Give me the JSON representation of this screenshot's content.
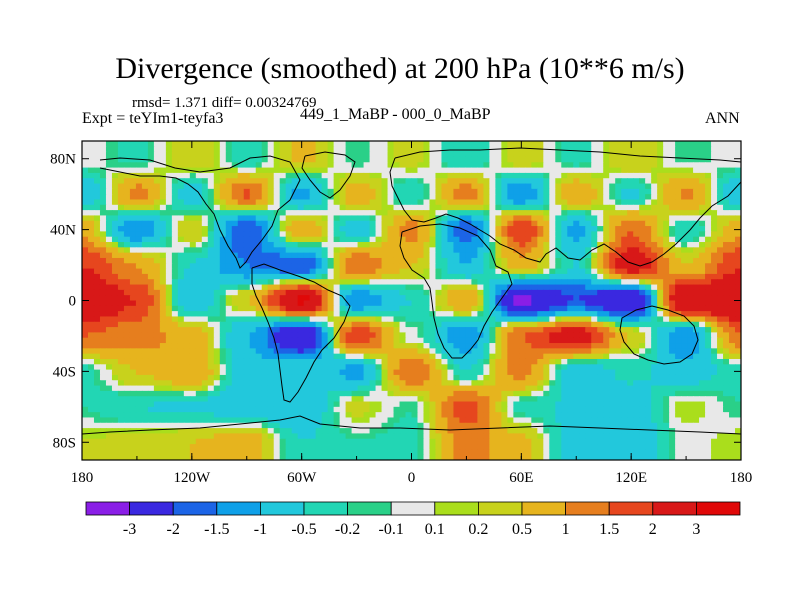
{
  "chart_data": {
    "type": "heatmap",
    "title": "Divergence (smoothed) at 200 hPa (10**6 m/s)",
    "stats_text": "rmsd= 1.371 diff= 0.00324769",
    "experiment_text": "Expt = teYIm1-teyfa3",
    "comparison_text": "449_1_MaBP - 000_0_MaBP",
    "season": "ANN",
    "x_ticks": [
      "180",
      "120W",
      "60W",
      "0",
      "60E",
      "120E",
      "180"
    ],
    "y_ticks": [
      "80N",
      "40N",
      "0",
      "40S",
      "80S"
    ],
    "xlim": [
      -180,
      180
    ],
    "ylim": [
      -90,
      90
    ],
    "colorbar": {
      "labels": [
        "-3",
        "-2",
        "-1.5",
        "-1",
        "-0.5",
        "-0.2",
        "-0.1",
        "0.1",
        "0.2",
        "0.5",
        "1",
        "1.5",
        "2",
        "3"
      ],
      "colors": [
        "#8a1ee6",
        "#3a28e0",
        "#1c64e6",
        "#0fa0e8",
        "#22c8dc",
        "#22d6b4",
        "#2ad088",
        "#e8e8e8",
        "#aade1c",
        "#c8d21c",
        "#e6b41e",
        "#e67e1e",
        "#e6461e",
        "#d81818",
        "#e00808"
      ]
    },
    "field": {
      "lon": [
        -180,
        -150,
        -120,
        -90,
        -60,
        -30,
        0,
        30,
        60,
        90,
        120,
        150,
        180
      ],
      "lat": [
        80,
        60,
        40,
        20,
        0,
        -20,
        -40,
        -60,
        -80
      ],
      "values": [
        [
          0.05,
          -0.3,
          0.5,
          -0.4,
          0.6,
          -0.2,
          0.3,
          -0.5,
          0.4,
          -0.3,
          0.5,
          -0.2,
          0.05
        ],
        [
          -1.0,
          1.2,
          -0.8,
          1.6,
          -1.2,
          0.8,
          -0.5,
          1.3,
          -1.5,
          0.9,
          -0.6,
          1.1,
          -1.0
        ],
        [
          0.8,
          -1.5,
          0.5,
          -2.0,
          1.0,
          -0.8,
          1.2,
          -1.8,
          2.0,
          -1.2,
          1.5,
          -0.5,
          0.8
        ],
        [
          2.0,
          1.0,
          -0.5,
          -1.5,
          -2.0,
          1.5,
          0.5,
          -1.0,
          0.8,
          -0.5,
          2.5,
          0.5,
          2.0
        ],
        [
          3.0,
          2.0,
          -1.0,
          0.5,
          3.2,
          -1.5,
          -0.5,
          1.0,
          -3.2,
          -2.0,
          -3.0,
          3.0,
          3.0
        ],
        [
          1.5,
          1.2,
          0.8,
          -1.0,
          -3.0,
          2.0,
          0.0,
          -1.5,
          1.5,
          2.5,
          0.5,
          -1.5,
          1.5
        ],
        [
          -0.3,
          0.5,
          1.0,
          -0.8,
          -0.5,
          -1.2,
          1.5,
          -0.5,
          1.2,
          -0.8,
          -0.4,
          -0.8,
          -0.3
        ],
        [
          -0.2,
          -0.5,
          -0.6,
          -0.8,
          -1.0,
          0.3,
          -0.2,
          1.8,
          -0.3,
          -0.6,
          -0.8,
          0.2,
          -0.2
        ],
        [
          0.2,
          0.3,
          0.5,
          0.8,
          -0.5,
          -0.2,
          -0.3,
          1.2,
          0.6,
          -0.8,
          -1.0,
          0.0,
          0.2
        ]
      ]
    }
  }
}
